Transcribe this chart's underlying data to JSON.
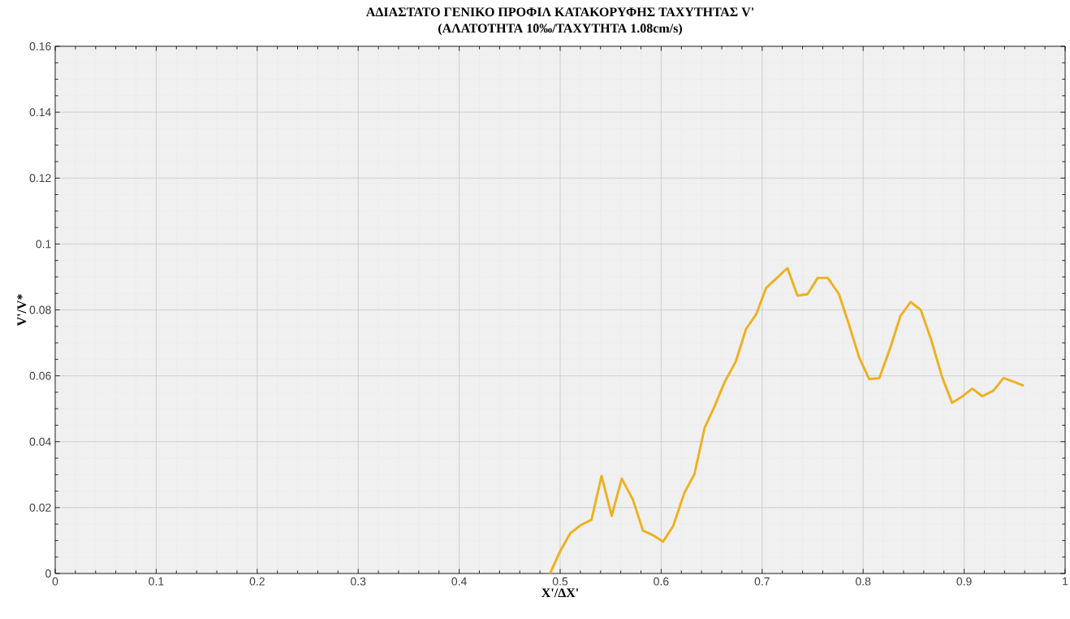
{
  "chart_data": {
    "type": "line",
    "title": "ΑΔΙΑΣΤΑΤΟ ΓΕΝΙΚΟ ΠΡΟΦΙΛ ΚΑΤΑΚΟΡΥΦΗΣ ΤΑΧΥΤΗΤΑΣ V'",
    "subtitle": "(ΑΛΑΤΟΤΗΤΑ 10‰/ΤΑΧΥΤΗΤΑ 1.08cm/s)",
    "xlabel": "X'/ΔX'",
    "ylabel": "V'/V*",
    "x": [
      0.49,
      0.5,
      0.51,
      0.521,
      0.531,
      0.541,
      0.551,
      0.561,
      0.572,
      0.582,
      0.592,
      0.602,
      0.612,
      0.623,
      0.633,
      0.643,
      0.653,
      0.663,
      0.674,
      0.684,
      0.694,
      0.704,
      0.714,
      0.725,
      0.735,
      0.745,
      0.755,
      0.765,
      0.776,
      0.786,
      0.796,
      0.806,
      0.816,
      0.827,
      0.837,
      0.847,
      0.857,
      0.867,
      0.878,
      0.888,
      0.898,
      0.908,
      0.918,
      0.929,
      0.939,
      0.949,
      0.959
    ],
    "series": [
      {
        "color": "#edb120",
        "values": [
          0.0,
          0.0068,
          0.0122,
          0.0148,
          0.0163,
          0.0296,
          0.0175,
          0.0288,
          0.0224,
          0.013,
          0.0116,
          0.0097,
          0.0145,
          0.0245,
          0.0302,
          0.0442,
          0.0508,
          0.0582,
          0.0644,
          0.0742,
          0.0786,
          0.0867,
          0.0895,
          0.0927,
          0.0843,
          0.0848,
          0.0897,
          0.0897,
          0.0848,
          0.0755,
          0.0656,
          0.059,
          0.0593,
          0.0686,
          0.0782,
          0.0824,
          0.08,
          0.0713,
          0.0598,
          0.0518,
          0.0537,
          0.0561,
          0.0538,
          0.0555,
          0.0593,
          0.0582,
          0.057
        ]
      }
    ],
    "xlim": [
      0,
      1
    ],
    "ylim": [
      0,
      0.16
    ],
    "xticks": [
      0,
      0.1,
      0.2,
      0.3,
      0.4,
      0.5,
      0.6,
      0.7,
      0.8,
      0.9,
      1
    ],
    "yticks": [
      0,
      0.02,
      0.04,
      0.06,
      0.08,
      0.1,
      0.12,
      0.14,
      0.16
    ],
    "grid": true,
    "marker": "none",
    "line_style": "solid"
  }
}
